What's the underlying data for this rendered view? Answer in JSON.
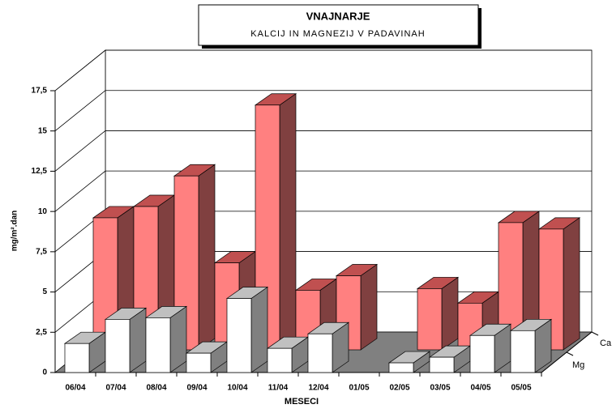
{
  "chart_data": {
    "type": "bar3d",
    "title": "VNAJNARJE",
    "subtitle": "KALCIJ IN MAGNEZIJ V PADAVINAH",
    "xlabel": "MESECI",
    "ylabel": "mg/m².dan",
    "categories": [
      "06/04",
      "07/04",
      "08/04",
      "09/04",
      "10/04",
      "11/04",
      "12/04",
      "01/05",
      "02/05",
      "03/05",
      "04/05",
      "05/05"
    ],
    "series": [
      {
        "name": "Ca",
        "color": "#ff8080",
        "values": [
          8.2,
          8.9,
          10.8,
          5.4,
          15.2,
          3.7,
          4.6,
          null,
          3.8,
          2.9,
          7.9,
          7.5
        ]
      },
      {
        "name": "Mg",
        "color": "#ffffff",
        "values": [
          1.8,
          3.3,
          3.4,
          1.2,
          4.6,
          1.5,
          2.4,
          null,
          0.6,
          0.95,
          2.3,
          2.6
        ]
      }
    ],
    "ylim": [
      0,
      17.5
    ],
    "yticks": [
      0,
      {
        "value": 2.5,
        "label": "2,5"
      },
      5,
      {
        "value": 7.5,
        "label": "7,5"
      },
      10,
      {
        "value": 12.5,
        "label": "12,5"
      },
      15,
      {
        "value": 17.5,
        "label": "17,5"
      }
    ],
    "grid": true
  }
}
